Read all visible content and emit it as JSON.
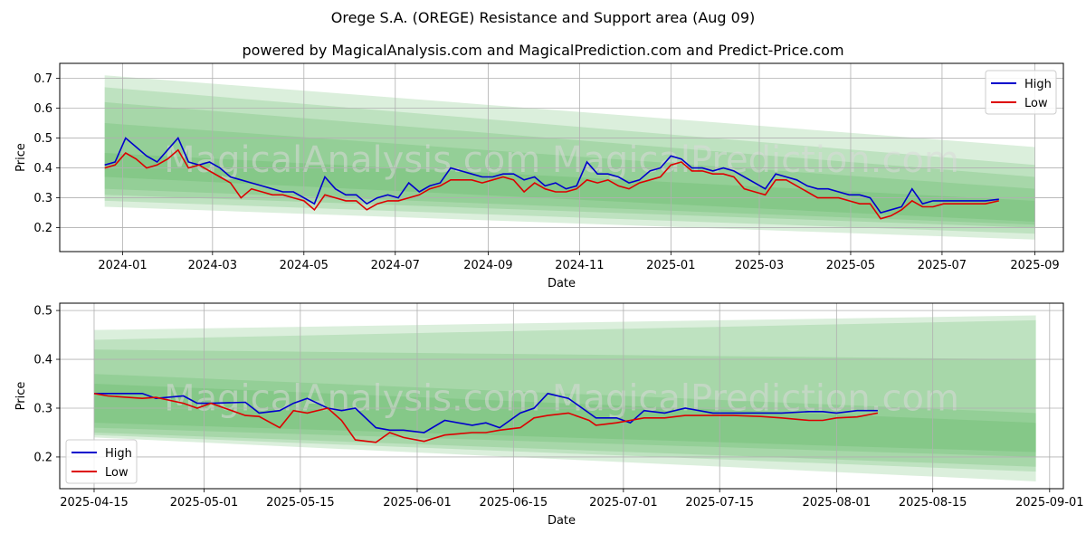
{
  "title": "Orege S.A. (OREGE) Resistance and Support area (Aug 09)",
  "subtitle": "powered by MagicalAnalysis.com and MagicalPrediction.com and Predict-Price.com",
  "watermark": "MagicalAnalysis.com    MagicalPrediction.com",
  "colors": {
    "high": "#0000cc",
    "low": "#dd0000",
    "band": "#4caf50",
    "grid": "#b0b0b0"
  },
  "chart_data": [
    {
      "type": "line",
      "xlabel": "Date",
      "ylabel": "Price",
      "xticks": [
        "2024-01",
        "2024-03",
        "2024-05",
        "2024-07",
        "2024-09",
        "2024-11",
        "2025-01",
        "2025-03",
        "2025-05",
        "2025-07",
        "2025-09"
      ],
      "yticks": [
        "0.2",
        "0.3",
        "0.4",
        "0.5",
        "0.6",
        "0.7"
      ],
      "xlim": [
        "2023-11-20",
        "2025-09-20"
      ],
      "ylim": [
        0.12,
        0.75
      ],
      "legend": {
        "position": "top-right",
        "entries": [
          "High",
          "Low"
        ]
      },
      "grid": true,
      "bands_date_range": [
        "2023-12-20",
        "2025-09-01"
      ],
      "bands": [
        {
          "start": [
            0.27,
            0.71
          ],
          "end": [
            0.16,
            0.47
          ]
        },
        {
          "start": [
            0.29,
            0.67
          ],
          "end": [
            0.18,
            0.41
          ]
        },
        {
          "start": [
            0.31,
            0.62
          ],
          "end": [
            0.2,
            0.37
          ]
        },
        {
          "start": [
            0.33,
            0.55
          ],
          "end": [
            0.21,
            0.33
          ]
        },
        {
          "start": [
            0.37,
            0.45
          ],
          "end": [
            0.22,
            0.29
          ]
        }
      ],
      "series": [
        {
          "name": "High",
          "dates": [
            "2023-12-20",
            "2023-12-27",
            "2024-01-03",
            "2024-01-10",
            "2024-01-17",
            "2024-01-24",
            "2024-01-31",
            "2024-02-07",
            "2024-02-14",
            "2024-02-21",
            "2024-02-28",
            "2024-03-06",
            "2024-03-13",
            "2024-03-20",
            "2024-03-27",
            "2024-04-03",
            "2024-04-10",
            "2024-04-17",
            "2024-04-24",
            "2024-05-01",
            "2024-05-08",
            "2024-05-15",
            "2024-05-22",
            "2024-05-29",
            "2024-06-05",
            "2024-06-12",
            "2024-06-19",
            "2024-06-26",
            "2024-07-03",
            "2024-07-10",
            "2024-07-17",
            "2024-07-24",
            "2024-07-31",
            "2024-08-07",
            "2024-08-14",
            "2024-08-21",
            "2024-08-28",
            "2024-09-04",
            "2024-09-11",
            "2024-09-18",
            "2024-09-25",
            "2024-10-02",
            "2024-10-09",
            "2024-10-16",
            "2024-10-23",
            "2024-10-30",
            "2024-11-06",
            "2024-11-13",
            "2024-11-20",
            "2024-11-27",
            "2024-12-04",
            "2024-12-11",
            "2024-12-18",
            "2024-12-25",
            "2025-01-01",
            "2025-01-08",
            "2025-01-15",
            "2025-01-22",
            "2025-01-29",
            "2025-02-05",
            "2025-02-12",
            "2025-02-19",
            "2025-02-26",
            "2025-03-05",
            "2025-03-12",
            "2025-03-19",
            "2025-03-26",
            "2025-04-02",
            "2025-04-09",
            "2025-04-16",
            "2025-04-23",
            "2025-04-30",
            "2025-05-07",
            "2025-05-14",
            "2025-05-21",
            "2025-05-28",
            "2025-06-04",
            "2025-06-11",
            "2025-06-18",
            "2025-06-25",
            "2025-07-02",
            "2025-07-09",
            "2025-07-16",
            "2025-07-23",
            "2025-07-30",
            "2025-08-08"
          ],
          "values": [
            0.41,
            0.42,
            0.5,
            0.47,
            0.44,
            0.42,
            0.46,
            0.5,
            0.42,
            0.41,
            0.42,
            0.4,
            0.37,
            0.36,
            0.35,
            0.34,
            0.33,
            0.32,
            0.32,
            0.3,
            0.28,
            0.37,
            0.33,
            0.31,
            0.31,
            0.28,
            0.3,
            0.31,
            0.3,
            0.35,
            0.32,
            0.34,
            0.35,
            0.4,
            0.39,
            0.38,
            0.37,
            0.37,
            0.38,
            0.38,
            0.36,
            0.37,
            0.34,
            0.35,
            0.33,
            0.34,
            0.42,
            0.38,
            0.38,
            0.37,
            0.35,
            0.36,
            0.39,
            0.4,
            0.44,
            0.43,
            0.4,
            0.4,
            0.39,
            0.4,
            0.39,
            0.37,
            0.35,
            0.33,
            0.38,
            0.37,
            0.36,
            0.34,
            0.33,
            0.33,
            0.32,
            0.31,
            0.31,
            0.3,
            0.25,
            0.26,
            0.27,
            0.33,
            0.28,
            0.29,
            0.29,
            0.29,
            0.29,
            0.29,
            0.29,
            0.295
          ]
        },
        {
          "name": "Low",
          "dates": [
            "2023-12-20",
            "2023-12-27",
            "2024-01-03",
            "2024-01-10",
            "2024-01-17",
            "2024-01-24",
            "2024-01-31",
            "2024-02-07",
            "2024-02-14",
            "2024-02-21",
            "2024-02-28",
            "2024-03-06",
            "2024-03-13",
            "2024-03-20",
            "2024-03-27",
            "2024-04-03",
            "2024-04-10",
            "2024-04-17",
            "2024-04-24",
            "2024-05-01",
            "2024-05-08",
            "2024-05-15",
            "2024-05-22",
            "2024-05-29",
            "2024-06-05",
            "2024-06-12",
            "2024-06-19",
            "2024-06-26",
            "2024-07-03",
            "2024-07-10",
            "2024-07-17",
            "2024-07-24",
            "2024-07-31",
            "2024-08-07",
            "2024-08-14",
            "2024-08-21",
            "2024-08-28",
            "2024-09-04",
            "2024-09-11",
            "2024-09-18",
            "2024-09-25",
            "2024-10-02",
            "2024-10-09",
            "2024-10-16",
            "2024-10-23",
            "2024-10-30",
            "2024-11-06",
            "2024-11-13",
            "2024-11-20",
            "2024-11-27",
            "2024-12-04",
            "2024-12-11",
            "2024-12-18",
            "2024-12-25",
            "2025-01-01",
            "2025-01-08",
            "2025-01-15",
            "2025-01-22",
            "2025-01-29",
            "2025-02-05",
            "2025-02-12",
            "2025-02-19",
            "2025-02-26",
            "2025-03-05",
            "2025-03-12",
            "2025-03-19",
            "2025-03-26",
            "2025-04-02",
            "2025-04-09",
            "2025-04-16",
            "2025-04-23",
            "2025-04-30",
            "2025-05-07",
            "2025-05-14",
            "2025-05-21",
            "2025-05-28",
            "2025-06-04",
            "2025-06-11",
            "2025-06-18",
            "2025-06-25",
            "2025-07-02",
            "2025-07-09",
            "2025-07-16",
            "2025-07-23",
            "2025-07-30",
            "2025-08-08"
          ],
          "values": [
            0.4,
            0.41,
            0.45,
            0.43,
            0.4,
            0.41,
            0.43,
            0.46,
            0.4,
            0.41,
            0.39,
            0.37,
            0.35,
            0.3,
            0.33,
            0.32,
            0.31,
            0.31,
            0.3,
            0.29,
            0.26,
            0.31,
            0.3,
            0.29,
            0.29,
            0.26,
            0.28,
            0.29,
            0.29,
            0.3,
            0.31,
            0.33,
            0.34,
            0.36,
            0.36,
            0.36,
            0.35,
            0.36,
            0.37,
            0.36,
            0.32,
            0.35,
            0.33,
            0.32,
            0.32,
            0.33,
            0.36,
            0.35,
            0.36,
            0.34,
            0.33,
            0.35,
            0.36,
            0.37,
            0.41,
            0.42,
            0.39,
            0.39,
            0.38,
            0.38,
            0.37,
            0.33,
            0.32,
            0.31,
            0.36,
            0.36,
            0.34,
            0.32,
            0.3,
            0.3,
            0.3,
            0.29,
            0.28,
            0.28,
            0.23,
            0.24,
            0.26,
            0.29,
            0.27,
            0.27,
            0.28,
            0.28,
            0.28,
            0.28,
            0.28,
            0.29
          ]
        }
      ]
    },
    {
      "type": "line",
      "xlabel": "Date",
      "ylabel": "Price",
      "xticks": [
        "2025-04-15",
        "2025-05-01",
        "2025-05-15",
        "2025-06-01",
        "2025-06-15",
        "2025-07-01",
        "2025-07-15",
        "2025-08-01",
        "2025-08-15",
        "2025-09-01"
      ],
      "yticks": [
        "0.2",
        "0.3",
        "0.4",
        "0.5"
      ],
      "xlim": [
        "2025-04-10",
        "2025-09-03"
      ],
      "ylim": [
        0.135,
        0.515
      ],
      "legend": {
        "position": "bottom-left",
        "entries": [
          "High",
          "Low"
        ]
      },
      "grid": true,
      "bands_date_range": [
        "2025-04-15",
        "2025-08-30"
      ],
      "bands": [
        {
          "start": [
            0.24,
            0.46
          ],
          "end": [
            0.15,
            0.49
          ]
        },
        {
          "start": [
            0.245,
            0.44
          ],
          "end": [
            0.17,
            0.48
          ]
        },
        {
          "start": [
            0.25,
            0.42
          ],
          "end": [
            0.18,
            0.4
          ]
        },
        {
          "start": [
            0.26,
            0.37
          ],
          "end": [
            0.2,
            0.29
          ]
        },
        {
          "start": [
            0.27,
            0.35
          ],
          "end": [
            0.21,
            0.27
          ]
        }
      ],
      "series": [
        {
          "name": "High",
          "dates": [
            "2025-04-15",
            "2025-04-17",
            "2025-04-22",
            "2025-04-24",
            "2025-04-28",
            "2025-04-30",
            "2025-05-02",
            "2025-05-07",
            "2025-05-09",
            "2025-05-12",
            "2025-05-14",
            "2025-05-16",
            "2025-05-19",
            "2025-05-21",
            "2025-05-23",
            "2025-05-26",
            "2025-05-28",
            "2025-05-30",
            "2025-06-02",
            "2025-06-05",
            "2025-06-09",
            "2025-06-11",
            "2025-06-13",
            "2025-06-16",
            "2025-06-18",
            "2025-06-20",
            "2025-06-23",
            "2025-06-26",
            "2025-06-27",
            "2025-06-30",
            "2025-07-02",
            "2025-07-04",
            "2025-07-07",
            "2025-07-10",
            "2025-07-14",
            "2025-07-17",
            "2025-07-21",
            "2025-07-24",
            "2025-07-28",
            "2025-07-30",
            "2025-08-01",
            "2025-08-04",
            "2025-08-07"
          ],
          "values": [
            0.33,
            0.33,
            0.33,
            0.32,
            0.325,
            0.31,
            0.31,
            0.312,
            0.29,
            0.295,
            0.31,
            0.32,
            0.3,
            0.295,
            0.3,
            0.26,
            0.255,
            0.255,
            0.25,
            0.275,
            0.265,
            0.27,
            0.26,
            0.29,
            0.3,
            0.33,
            0.32,
            0.29,
            0.28,
            0.28,
            0.27,
            0.295,
            0.29,
            0.3,
            0.29,
            0.29,
            0.29,
            0.29,
            0.293,
            0.293,
            0.29,
            0.295,
            0.295
          ]
        },
        {
          "name": "Low",
          "dates": [
            "2025-04-15",
            "2025-04-17",
            "2025-04-22",
            "2025-04-24",
            "2025-04-28",
            "2025-04-30",
            "2025-05-02",
            "2025-05-07",
            "2025-05-09",
            "2025-05-12",
            "2025-05-14",
            "2025-05-16",
            "2025-05-19",
            "2025-05-21",
            "2025-05-23",
            "2025-05-26",
            "2025-05-28",
            "2025-05-30",
            "2025-06-02",
            "2025-06-05",
            "2025-06-09",
            "2025-06-11",
            "2025-06-13",
            "2025-06-16",
            "2025-06-18",
            "2025-06-20",
            "2025-06-23",
            "2025-06-26",
            "2025-06-27",
            "2025-06-30",
            "2025-07-02",
            "2025-07-04",
            "2025-07-07",
            "2025-07-10",
            "2025-07-14",
            "2025-07-17",
            "2025-07-21",
            "2025-07-24",
            "2025-07-28",
            "2025-07-30",
            "2025-08-01",
            "2025-08-04",
            "2025-08-07"
          ],
          "values": [
            0.33,
            0.325,
            0.32,
            0.322,
            0.31,
            0.3,
            0.31,
            0.285,
            0.283,
            0.26,
            0.295,
            0.29,
            0.3,
            0.275,
            0.235,
            0.23,
            0.25,
            0.24,
            0.232,
            0.245,
            0.25,
            0.25,
            0.255,
            0.26,
            0.28,
            0.285,
            0.29,
            0.275,
            0.265,
            0.27,
            0.275,
            0.28,
            0.28,
            0.285,
            0.285,
            0.285,
            0.283,
            0.28,
            0.275,
            0.275,
            0.28,
            0.282,
            0.29
          ]
        }
      ]
    }
  ]
}
